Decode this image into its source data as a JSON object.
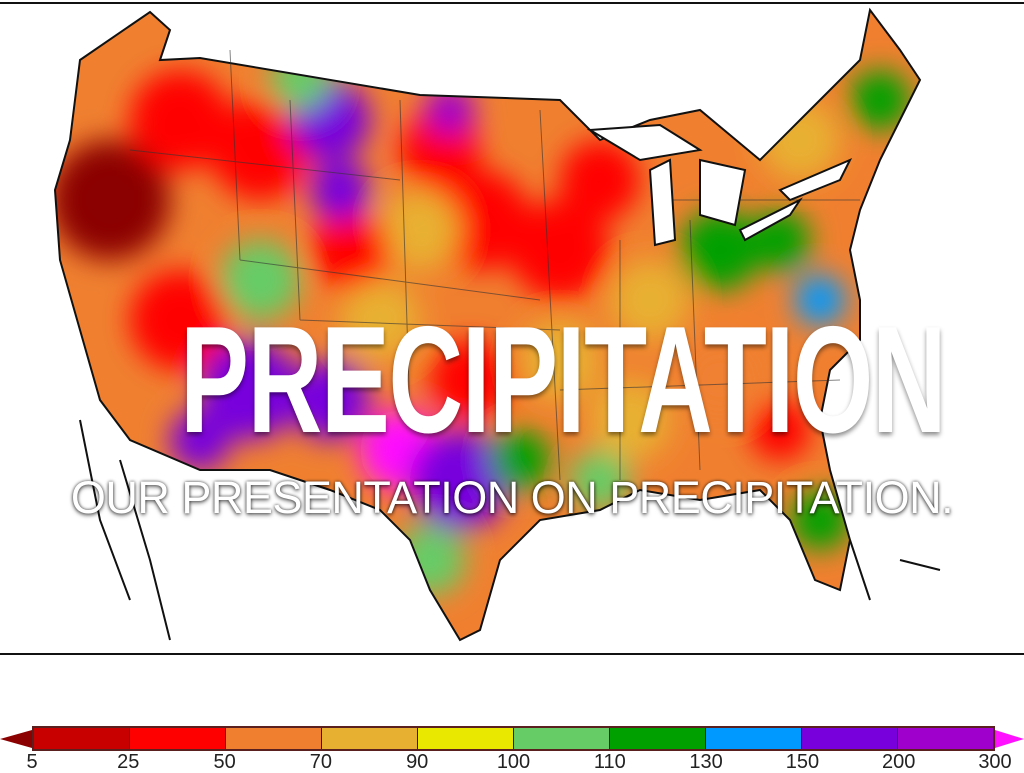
{
  "slide": {
    "title": "PRECIPITATION",
    "subtitle": "OUR PRESENTATION ON PRECIPITATION."
  },
  "legend": {
    "tick_labels": [
      "5",
      "25",
      "50",
      "70",
      "90",
      "100",
      "110",
      "130",
      "150",
      "200",
      "300"
    ],
    "colors": [
      "#c80000",
      "#ff0000",
      "#f08030",
      "#e8b030",
      "#e8e800",
      "#66cc66",
      "#00a000",
      "#0099ff",
      "#7700dd",
      "#a000cc"
    ],
    "low_cap_color": "#8b0000",
    "high_cap_color": "#ff10ff"
  }
}
